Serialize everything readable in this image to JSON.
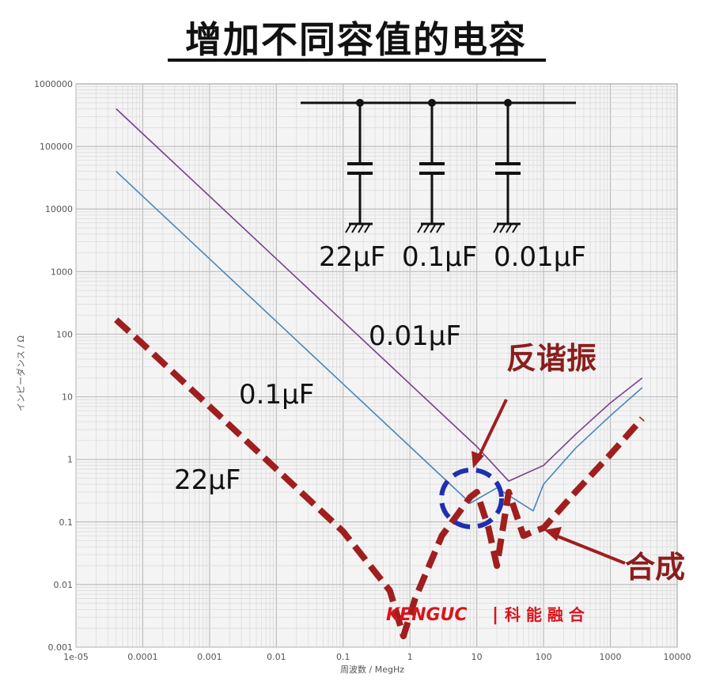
{
  "title": "增加不同容值的电容",
  "chart_data": {
    "type": "line",
    "title": "增加不同容值的电容",
    "xlabel": "周波数 / MegHz",
    "ylabel": "インピーダンス / Ω",
    "x_scale": "log",
    "y_scale": "log",
    "xlim": [
      1e-05,
      10000
    ],
    "ylim": [
      0.001,
      1000000
    ],
    "x_tick_labels": [
      "1e-05",
      "0.0001",
      "0.001",
      "0.01",
      "0.1",
      "1",
      "10",
      "100",
      "1000",
      "10000"
    ],
    "y_tick_labels": [
      "0.001",
      "0.01",
      "0.1",
      "1",
      "10",
      "100",
      "1000",
      "10000",
      "100000",
      "1000000"
    ],
    "grid": true,
    "series": [
      {
        "name": "0.01μF",
        "color": "#7a3e8c",
        "x": [
          4e-05,
          0.0001,
          0.001,
          0.01,
          0.1,
          1,
          10,
          30,
          100,
          300,
          1000,
          3000
        ],
        "y": [
          400000,
          160000,
          16000,
          1600,
          160,
          16,
          1.6,
          0.45,
          0.8,
          2.5,
          8,
          20
        ]
      },
      {
        "name": "0.1μF",
        "color": "#4a86b8",
        "x": [
          4e-05,
          0.0001,
          0.001,
          0.01,
          0.1,
          1,
          8,
          20,
          70,
          100,
          300,
          1000,
          3000
        ],
        "y": [
          40000,
          16000,
          1600,
          160,
          16,
          1.6,
          0.2,
          0.35,
          0.15,
          0.4,
          1.5,
          5,
          14
        ]
      },
      {
        "name": "合成",
        "color": "#a01e1e",
        "x": [
          4e-05,
          0.0001,
          0.001,
          0.01,
          0.1,
          0.5,
          0.8,
          1.2,
          3,
          8,
          10,
          15,
          20,
          30,
          50,
          70,
          100,
          300,
          1000,
          3000
        ],
        "y": [
          170,
          70,
          7,
          0.7,
          0.07,
          0.008,
          0.0015,
          0.006,
          0.06,
          0.25,
          0.3,
          0.08,
          0.02,
          0.3,
          0.06,
          0.07,
          0.08,
          0.3,
          1.2,
          4.5
        ]
      }
    ],
    "inline_labels": [
      "0.01μF",
      "0.1μF",
      "22μF"
    ],
    "annotations": [
      "反谐振",
      "合成"
    ],
    "circuit_labels": [
      "22μF",
      "0.1μF",
      "0.01μF"
    ]
  },
  "watermark": {
    "brand_en": "KENGUC",
    "separator": "|",
    "brand_cn": "科 能 融 合"
  }
}
